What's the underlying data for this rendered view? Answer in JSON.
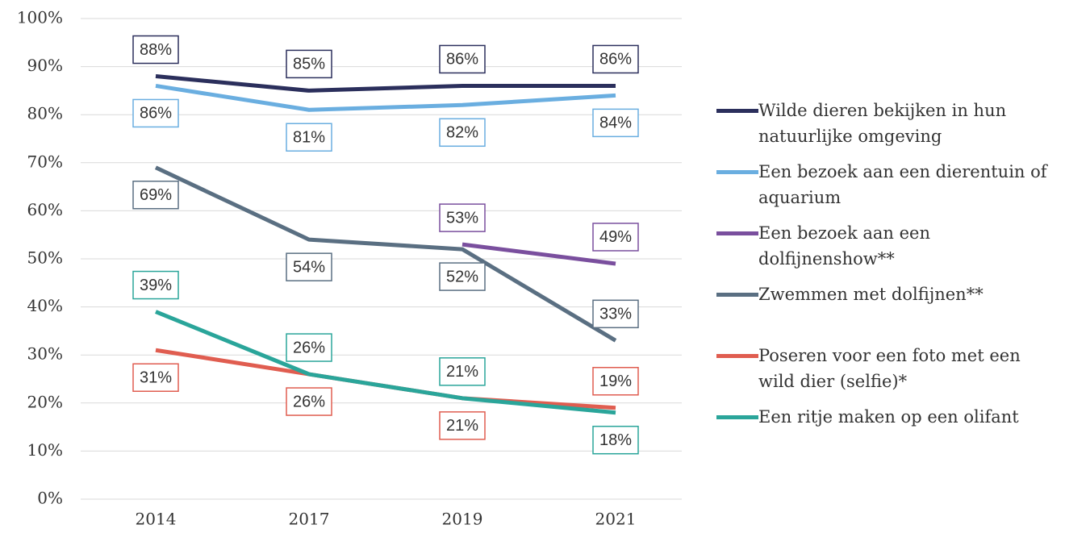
{
  "chart_data": {
    "type": "line",
    "categories": [
      "2014",
      "2017",
      "2019",
      "2021"
    ],
    "ylim": [
      0,
      100
    ],
    "yticks": [
      {
        "value": 0,
        "label": "0%"
      },
      {
        "value": 10,
        "label": "10%"
      },
      {
        "value": 20,
        "label": "20%"
      },
      {
        "value": 30,
        "label": "30%"
      },
      {
        "value": 40,
        "label": "40%"
      },
      {
        "value": 50,
        "label": "50%"
      },
      {
        "value": 60,
        "label": "60%"
      },
      {
        "value": 70,
        "label": "70%"
      },
      {
        "value": 80,
        "label": "80%"
      },
      {
        "value": 90,
        "label": "90%"
      },
      {
        "value": 100,
        "label": "100%"
      }
    ],
    "grid": true,
    "legend": "right",
    "series": [
      {
        "name": "Wilde dieren bekijken in hun natuurlijke omgeving",
        "color": "#2b2f5c",
        "values": [
          88,
          85,
          86,
          86
        ],
        "value_labels": [
          "88%",
          "85%",
          "86%",
          "86%"
        ]
      },
      {
        "name": "Een bezoek aan een dierentuin of aquarium",
        "color": "#6aaee0",
        "values": [
          86,
          81,
          82,
          84
        ],
        "value_labels": [
          "86%",
          "81%",
          "82%",
          "84%"
        ]
      },
      {
        "name": "Een bezoek aan een dolfijnenshow**",
        "color": "#7a4f9e",
        "values": [
          null,
          null,
          53,
          49
        ],
        "value_labels": [
          null,
          null,
          "53%",
          "49%"
        ]
      },
      {
        "name": "Zwemmen met dolfijnen**",
        "color": "#5a6f82",
        "values": [
          69,
          54,
          52,
          33
        ],
        "value_labels": [
          "69%",
          "54%",
          "52%",
          "33%"
        ]
      },
      {
        "name": "Poseren voor een foto met een wild dier (selfie)*",
        "color": "#e05d50",
        "values": [
          31,
          26,
          21,
          19
        ],
        "value_labels": [
          "31%",
          "26%",
          "21%",
          "19%"
        ]
      },
      {
        "name": "Een ritje maken op een olifant",
        "color": "#2aa59a",
        "values": [
          39,
          26,
          21,
          18
        ],
        "value_labels": [
          "39%",
          "26%",
          "21%",
          "18%"
        ]
      }
    ]
  }
}
